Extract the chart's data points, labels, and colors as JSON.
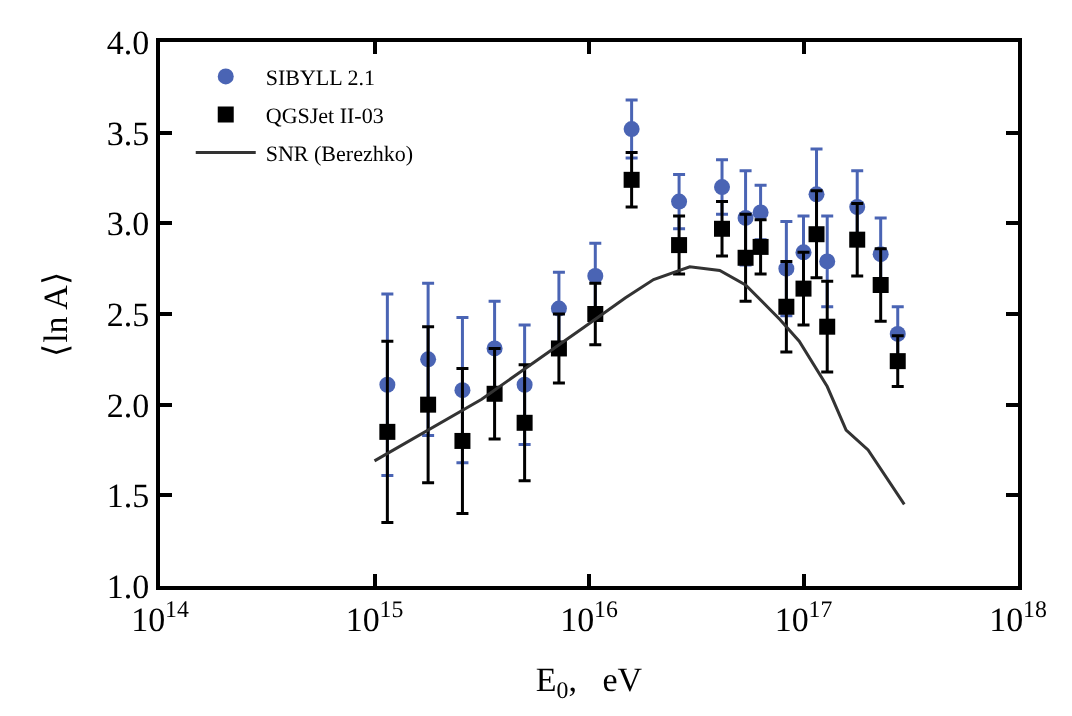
{
  "chart_data": {
    "type": "scatter",
    "xlabel": "E$_{0}$,   eV",
    "ylabel": "⟨ln A⟩",
    "log": "x",
    "x": [
      1148000000000000.0,
      1778000000000000.0,
      2570000000000000.0,
      3630000000000000.0,
      5010000000000000.0,
      7240000000000000.0,
      1.07e+16,
      1.58e+16,
      2.63e+16,
      4.17e+16,
      5.37e+16,
      6.31e+16,
      8.32e+16,
      1e+17,
      1.15e+17,
      1.29e+17,
      1.78e+17,
      2.29e+17,
      2.75e+17
    ],
    "series": [
      {
        "name": "SIBYLL 2.1",
        "color": "#4a64b4",
        "marker": "circle",
        "values": [
          2.11,
          2.25,
          2.08,
          2.31,
          2.11,
          2.53,
          2.71,
          3.52,
          3.12,
          3.2,
          3.03,
          3.06,
          2.75,
          2.84,
          3.16,
          2.79,
          3.09,
          2.83,
          2.39
        ],
        "errors": [
          0.5,
          0.42,
          0.4,
          0.26,
          0.33,
          0.2,
          0.18,
          0.16,
          0.15,
          0.15,
          0.26,
          0.15,
          0.26,
          0.2,
          0.25,
          0.25,
          0.2,
          0.2,
          0.15
        ]
      },
      {
        "name": "QGSJet II-03",
        "color": "#000000",
        "marker": "square",
        "values": [
          1.85,
          2.0,
          1.8,
          2.06,
          1.9,
          2.31,
          2.5,
          3.24,
          2.88,
          2.97,
          2.81,
          2.87,
          2.54,
          2.64,
          2.94,
          2.43,
          2.91,
          2.66,
          2.24
        ],
        "errors": [
          0.5,
          0.43,
          0.4,
          0.25,
          0.32,
          0.19,
          0.17,
          0.15,
          0.16,
          0.15,
          0.24,
          0.15,
          0.25,
          0.2,
          0.24,
          0.25,
          0.2,
          0.2,
          0.14
        ]
      },
      {
        "name": "SNR (Berezhko)",
        "type": "line",
        "color": "#333333",
        "marker": "none",
        "line_style": "solid",
        "x": [
          1000000000000000.0,
          3160000000000000.0,
          9550000000000000.0,
          1.48e+16,
          2e+16,
          2.95e+16,
          4.07e+16,
          5.37e+16,
          7.76e+16,
          9.55e+16,
          1.29e+17,
          1.58e+17,
          2e+17,
          2.95e+17
        ],
        "values": [
          1.69,
          2.03,
          2.43,
          2.59,
          2.69,
          2.76,
          2.74,
          2.66,
          2.47,
          2.35,
          2.1,
          1.86,
          1.75,
          1.45
        ]
      }
    ],
    "xlim": [
      100000000000000.0,
      1e+18
    ],
    "ylim": [
      1.0,
      4.0
    ],
    "xticks": [
      {
        "value": 100000000000000.0,
        "label": "10$^{14}$"
      },
      {
        "value": 1000000000000000.0,
        "label": "10$^{15}$"
      },
      {
        "value": 1e+16,
        "label": "10$^{16}$"
      },
      {
        "value": 1e+17,
        "label": "10$^{17}$"
      },
      {
        "value": 1e+18,
        "label": "10$^{18}$"
      }
    ],
    "yticks": [
      {
        "value": 1.0,
        "label": "1.0"
      },
      {
        "value": 1.5,
        "label": "1.5"
      },
      {
        "value": 2.0,
        "label": "2.0"
      },
      {
        "value": 2.5,
        "label": "2.5"
      },
      {
        "value": 3.0,
        "label": "3.0"
      },
      {
        "value": 3.5,
        "label": "3.5"
      },
      {
        "value": 4.0,
        "label": "4.0"
      }
    ],
    "legend": "top left"
  }
}
